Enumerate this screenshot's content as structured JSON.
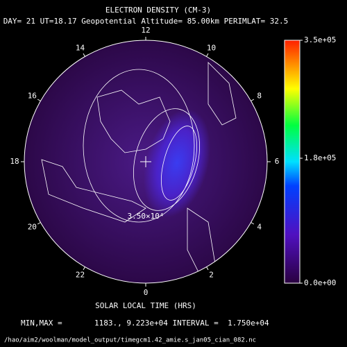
{
  "chart_data": {
    "type": "polar-contour",
    "title": "ELECTRON DENSITY (CM-3)",
    "subtitle": "DAY= 21 UT=18.17 Geopotential Altitude= 85.00km PERIMLAT= 32.5",
    "angular_ticks": [
      12,
      10,
      8,
      6,
      4,
      2,
      0,
      22,
      20,
      18,
      16,
      14
    ],
    "contour_label": "3.50×10⁴",
    "xlabel": "SOLAR LOCAL TIME (HRS)",
    "clim": [
      0,
      350000
    ],
    "colorbar_ticks": [
      {
        "value": 350000,
        "label": "3.5e+05"
      },
      {
        "value": 180000,
        "label": "1.8e+05"
      },
      {
        "value": 0,
        "label": "0.0e+00"
      }
    ],
    "stats": "MIN,MAX =       1183., 9.223e+04 INTERVAL =  1.750e+04",
    "file": "/hao/aim2/woolman/model_output/timegcm1.42_amie.s_jan05_cian_082.nc"
  }
}
